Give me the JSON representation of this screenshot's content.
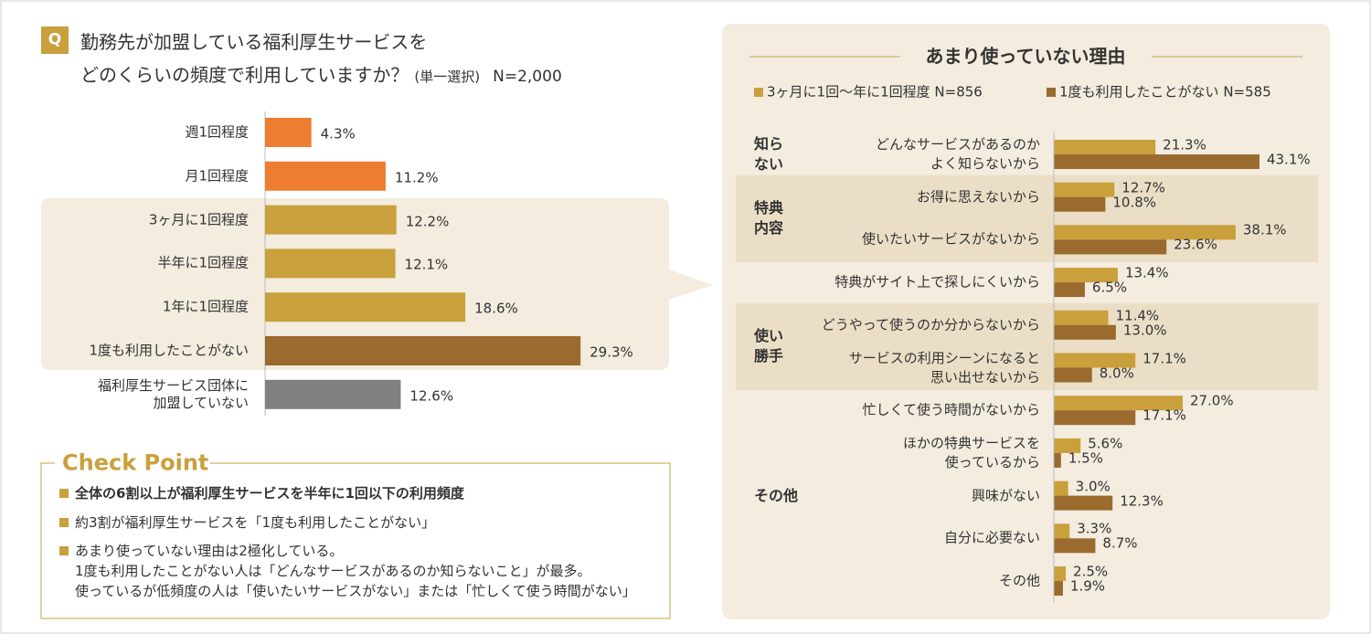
{
  "question": {
    "badge": "Q",
    "title": "勤務先が加盟している福利厚生サービスを\nどのくらいの頻度で利用していますか？",
    "note": "(単一選択)",
    "n": "N=2,000"
  },
  "check_point": {
    "title": "Check Point",
    "items": [
      "全体の6割以上が福利厚生サービスを半年に1回以下の利用頻度",
      "約3割が福利厚生サービスを「1度も利用したことがない」",
      "あまり使っていない理由は2極化している。\n1度も利用したことがない人は「どんなサービスがあるのか知らないこと」が最多。\n使っているが低頻度の人は「使いたいサービスがない」または「忙しくて使う時間がない」"
    ]
  },
  "chart_data": [
    {
      "type": "bar",
      "categories": [
        "週1回程度",
        "月1回程度",
        "3ヶ月に1回程度",
        "半年に1回程度",
        "1年に1回程度",
        "1度も利用したことがない",
        "福利厚生サービス団体に\n加盟していない"
      ],
      "values": [
        4.3,
        11.2,
        12.2,
        12.1,
        18.6,
        29.3,
        12.6
      ],
      "value_labels": [
        "4.3%",
        "11.2%",
        "12.2%",
        "12.1%",
        "18.6%",
        "29.3%",
        "12.6%"
      ],
      "colors": [
        "#ed7d31",
        "#ed7d31",
        "#c9a03c",
        "#c9a03c",
        "#c9a03c",
        "#9a6a2e",
        "#808080"
      ]
    },
    {
      "type": "grouped-bar",
      "title": "あまり使っていない理由",
      "groups": [
        {
          "name": "知ら\nない",
          "highlight": false,
          "categories": [
            "どんなサービスがあるのか\nよく知らないから"
          ]
        },
        {
          "name": "特典\n内容",
          "highlight": true,
          "categories": [
            "お得に思えないから",
            "使いたいサービスがないから"
          ]
        },
        {
          "name": null,
          "highlight": false,
          "categories": [
            "特典がサイト上で探しにくいから"
          ]
        },
        {
          "name": "使い\n勝手",
          "highlight": true,
          "categories": [
            "どうやって使うのか分からないから",
            "サービスの利用シーンになると\n思い出せないから"
          ]
        },
        {
          "name": "その他",
          "highlight": false,
          "categories": [
            "忙しくて使う時間がないから",
            "ほかの特典サービスを\n使っているから",
            "興味がない",
            "自分に必要ない",
            "その他"
          ]
        }
      ],
      "series": [
        {
          "name": "3ヶ月に1回～年に1回程度 N=856",
          "color": "#c9a03c",
          "values": [
            21.3,
            12.7,
            38.1,
            13.4,
            11.4,
            17.1,
            27.0,
            5.6,
            3.0,
            3.3,
            2.5
          ],
          "value_labels": [
            "21.3%",
            "12.7%",
            "38.1%",
            "13.4%",
            "11.4%",
            "17.1%",
            "27.0%",
            "5.6%",
            "3.0%",
            "3.3%",
            "2.5%"
          ]
        },
        {
          "name": "1度も利用したことがない N=585",
          "color": "#9a6a2e",
          "values": [
            43.1,
            10.8,
            23.6,
            6.5,
            13.0,
            8.0,
            17.1,
            1.5,
            12.3,
            8.7,
            1.9
          ],
          "value_labels": [
            "43.1%",
            "10.8%",
            "23.6%",
            "6.5%",
            "13.0%",
            "8.0%",
            "17.1%",
            "1.5%",
            "12.3%",
            "8.7%",
            "1.9%"
          ]
        }
      ]
    }
  ]
}
